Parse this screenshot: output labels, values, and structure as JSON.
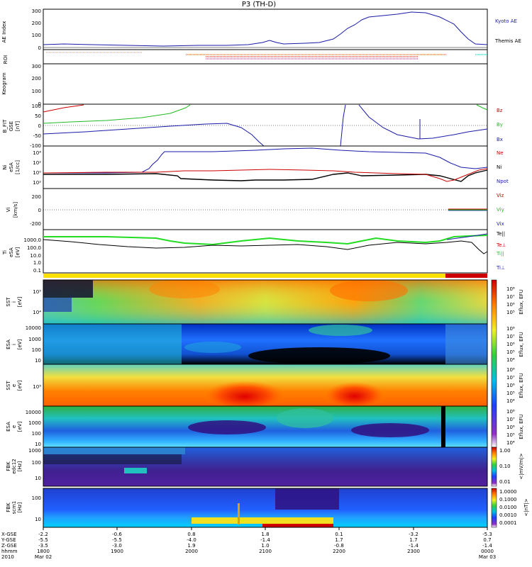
{
  "title": "P3 (TH-D)",
  "chart_data": [
    {
      "type": "line",
      "panel": "ae",
      "ylabel": "AE Index",
      "yticks": [
        "0",
        "100",
        "200",
        "300"
      ],
      "ylim": [
        0,
        340
      ],
      "legend": [
        {
          "name": "Kyoto AE",
          "color": "#1a1aa6"
        },
        {
          "name": "Themis AE",
          "color": "#000000"
        }
      ],
      "series": [
        {
          "name": "Kyoto AE",
          "x": [
            1800,
            1830,
            1900,
            1930,
            2000,
            2030,
            2045,
            2100,
            2130,
            2145,
            2200,
            2210,
            2230,
            2245,
            2300,
            2315,
            2330,
            2345,
            2400
          ],
          "y": [
            30,
            35,
            25,
            20,
            25,
            30,
            55,
            30,
            40,
            120,
            230,
            260,
            280,
            300,
            290,
            250,
            160,
            80,
            40
          ]
        },
        {
          "name": "Themis AE",
          "x": [
            1800,
            2400
          ],
          "y": [
            8,
            8
          ]
        }
      ]
    },
    {
      "type": "line",
      "panel": "roi",
      "ylabel": "ROI"
    },
    {
      "type": "line",
      "panel": "keogram",
      "ylabel": "Keogram",
      "yticks": [
        "0",
        "100",
        "200",
        "300"
      ],
      "ylim": [
        0,
        300
      ]
    },
    {
      "type": "line",
      "panel": "bfit",
      "ylabel": [
        "B_FIT",
        "GSE",
        "[nT]"
      ],
      "yticks": [
        "-100",
        "-50",
        "0",
        "50",
        "100"
      ],
      "ylim": [
        -100,
        100
      ],
      "legend": [
        {
          "name": "Bz",
          "color": "#cc0000"
        },
        {
          "name": "By",
          "color": "#22bb22"
        },
        {
          "name": "Bx",
          "color": "#1a1aa6"
        }
      ]
    },
    {
      "type": "line",
      "panel": "density",
      "ylabel": [
        "Ni",
        "eSA",
        "[1/cc]"
      ],
      "yticks": [
        "10²",
        "10⁰",
        "10²",
        "10⁴"
      ],
      "legend": [
        {
          "name": "Ne",
          "color": "#cc0000"
        },
        {
          "name": "Ni",
          "color": "#000000"
        },
        {
          "name": "Npot",
          "color": "#1a1aa6"
        }
      ]
    },
    {
      "type": "line",
      "panel": "velocity",
      "ylabel": [
        "Vi",
        "[km/s]"
      ],
      "yticks": [
        "-200",
        "0",
        "200"
      ],
      "ylim": [
        -300,
        300
      ],
      "legend": [
        {
          "name": "Viz",
          "color": "#cc0000"
        },
        {
          "name": "Viy",
          "color": "#22bb22"
        },
        {
          "name": "Vix",
          "color": "#1a1aa6"
        }
      ]
    },
    {
      "type": "line",
      "panel": "temperature",
      "ylabel": [
        "Ti",
        "eSA",
        "[eV]"
      ],
      "yticks": [
        "1000.0",
        "100.0",
        "10.0",
        "1.0",
        "0.1"
      ],
      "legend": [
        {
          "name": "Te||",
          "color": "#000000"
        },
        {
          "name": "Te⊥",
          "color": "#cc0000"
        },
        {
          "name": "Ti||",
          "color": "#22bb22"
        },
        {
          "name": "Ti⊥",
          "color": "#1a1aa6"
        }
      ]
    },
    {
      "type": "heatmap",
      "panel": "sst-ion",
      "ylabel": [
        "SST",
        "i",
        "[eV]"
      ],
      "yticks": [
        "10⁵",
        "10⁴"
      ],
      "colorbar_label": "Eflux, EFU",
      "colorbar_ticks": [
        "10⁸",
        "10⁷",
        "10⁶",
        "10⁵",
        "10⁴",
        "10³"
      ]
    },
    {
      "type": "heatmap",
      "panel": "esa-ion",
      "ylabel": [
        "ESA",
        "i",
        "[eV]"
      ],
      "yticks": [
        "10000",
        "1000",
        "100",
        "10"
      ],
      "colorbar_label": "Eflux, EFU",
      "colorbar_ticks": [
        "10⁸",
        "10⁷",
        "10⁶",
        "10⁵",
        "10⁴",
        "10³"
      ]
    },
    {
      "type": "heatmap",
      "panel": "sst-electron",
      "ylabel": [
        "SST",
        "e",
        "[eV]"
      ],
      "yticks": [
        "10⁵"
      ],
      "colorbar_label": "Eflux, EFU",
      "colorbar_ticks": [
        "10⁸",
        "10⁷",
        "10⁶",
        "10⁵",
        "10⁴",
        "10³"
      ]
    },
    {
      "type": "heatmap",
      "panel": "esa-electron",
      "ylabel": [
        "ESA",
        "e",
        "[eV]"
      ],
      "yticks": [
        "10000",
        "1000",
        "100",
        "10"
      ],
      "colorbar_label": "Eflux, EFU",
      "colorbar_ticks": [
        "10⁸",
        "10⁷",
        "10⁶",
        "10⁵",
        "10⁴",
        "10³"
      ]
    },
    {
      "type": "heatmap",
      "panel": "fbk-e",
      "ylabel": [
        "FBK",
        "edc12",
        "[Hz]"
      ],
      "yticks": [
        "1000",
        "100",
        "10"
      ],
      "colorbar_label": "<|mV/m|>",
      "colorbar_ticks": [
        "1.00",
        "0.10",
        "0.01"
      ]
    },
    {
      "type": "heatmap",
      "panel": "fbk-b",
      "ylabel": [
        "FBK",
        "scm1",
        "[Hz]"
      ],
      "yticks": [
        "100",
        "10"
      ],
      "colorbar_label": "<|nT|>",
      "colorbar_ticks": [
        "1.0000",
        "0.1000",
        "0.0100",
        "0.0010",
        "0.0001"
      ]
    }
  ],
  "axis_labels": {
    "rows": [
      "X-GSE",
      "Y-GSE",
      "Z-GSE",
      "hhmm",
      "2010"
    ],
    "columns": [
      [
        "-2.2",
        "-5.5",
        "-3.5",
        "1800",
        "Mar 02"
      ],
      [
        "-0.6",
        "-5.5",
        "-3.0",
        "1900",
        ""
      ],
      [
        "0.8",
        "-4.0",
        "1.9",
        "2000",
        ""
      ],
      [
        "1.8",
        "-1.4",
        "1.0",
        "2100",
        ""
      ],
      [
        "0.1",
        "1.7",
        "-0.8",
        "2200",
        ""
      ],
      [
        "-3.2",
        "1.7",
        "-1.4",
        "2300",
        ""
      ],
      [
        "-5.3",
        "0.7",
        "-1.4",
        "0000",
        "Mar 03"
      ]
    ]
  }
}
